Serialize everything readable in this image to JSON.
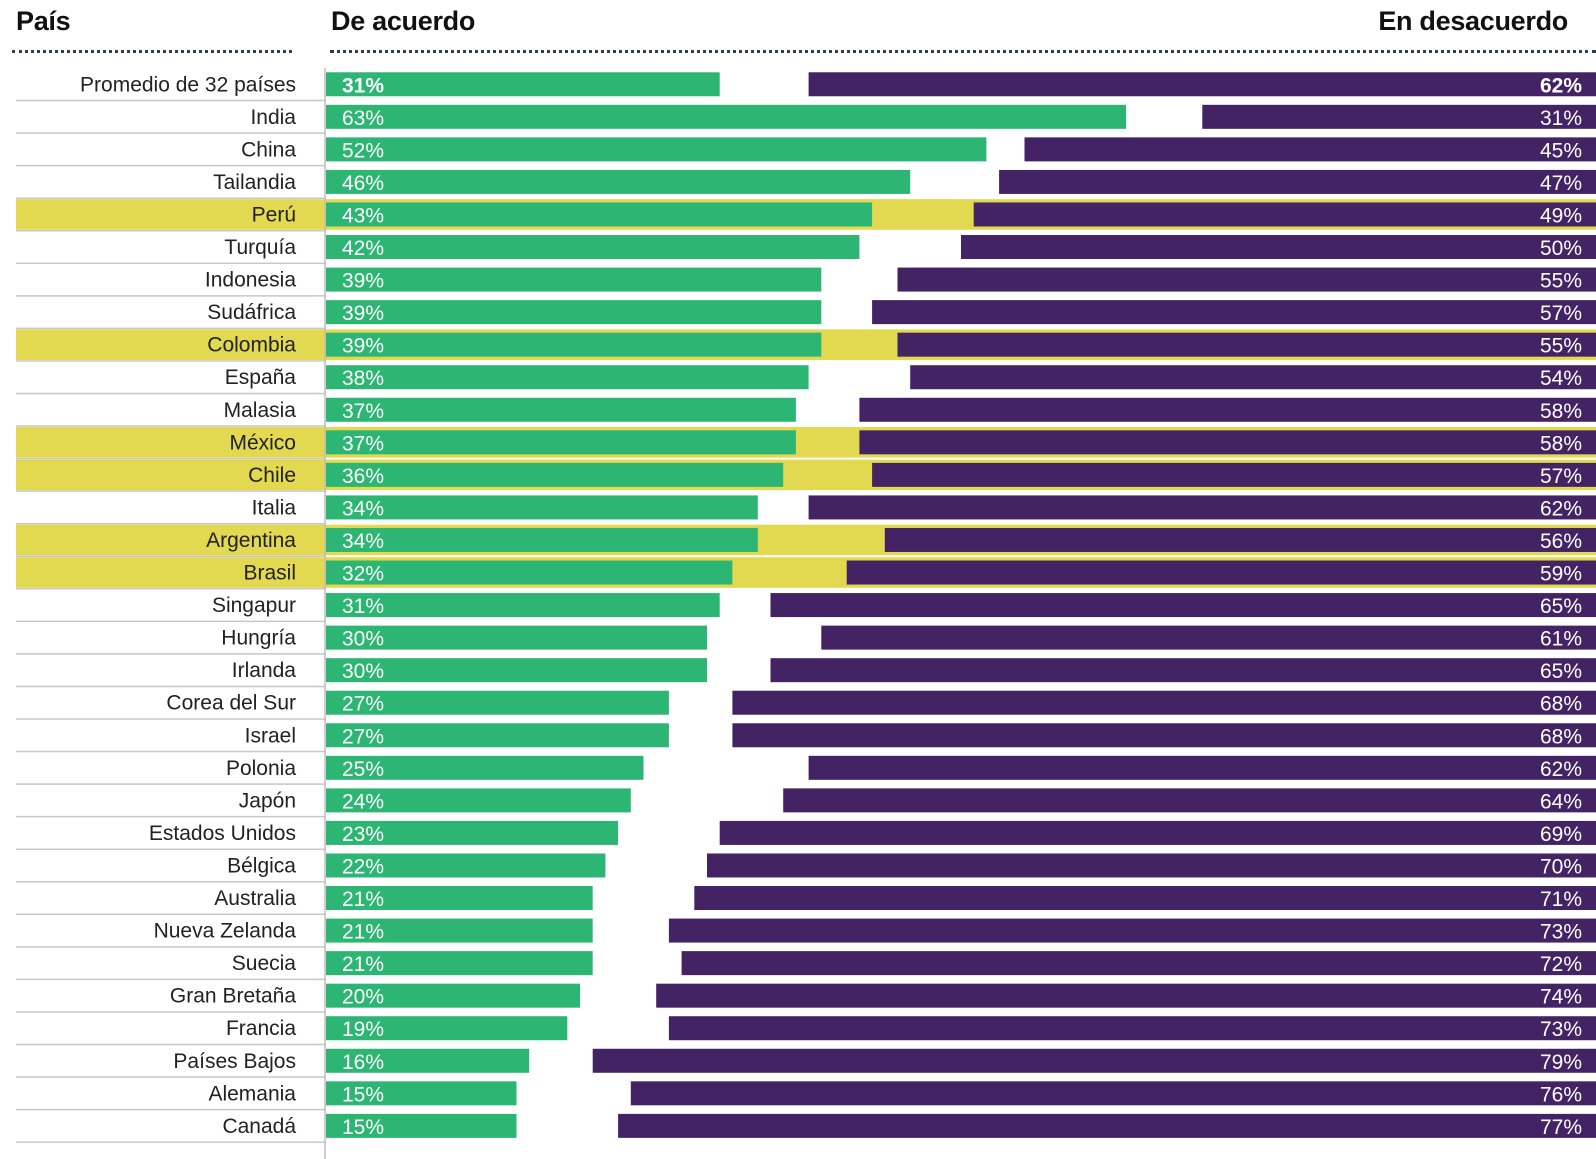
{
  "headers": {
    "country": "País",
    "agree": "De acuerdo",
    "disagree": "En desacuerdo"
  },
  "colors": {
    "agree": "#2db673",
    "disagree": "#432363",
    "highlight": "#e2d950",
    "row_line": "#c8c8c8"
  },
  "chart_data": {
    "type": "bar",
    "stacked": "diverging",
    "categories": [
      "Promedio de 32 países",
      "India",
      "China",
      "Tailandia",
      "Perú",
      "Turquía",
      "Indonesia",
      "Sudáfrica",
      "Colombia",
      "España",
      "Malasia",
      "México",
      "Chile",
      "Italia",
      "Argentina",
      "Brasil",
      "Singapur",
      "Hungría",
      "Irlanda",
      "Corea del Sur",
      "Israel",
      "Polonia",
      "Japón",
      "Estados Unidos",
      "Bélgica",
      "Australia",
      "Nueva Zelanda",
      "Suecia",
      "Gran Bretaña",
      "Francia",
      "Países Bajos",
      "Alemania",
      "Canadá"
    ],
    "series": [
      {
        "name": "De acuerdo",
        "values": [
          31,
          63,
          52,
          46,
          43,
          42,
          39,
          39,
          39,
          38,
          37,
          37,
          36,
          34,
          34,
          32,
          31,
          30,
          30,
          27,
          27,
          25,
          24,
          23,
          22,
          21,
          21,
          21,
          20,
          19,
          16,
          15,
          15
        ]
      },
      {
        "name": "En desacuerdo",
        "values": [
          62,
          31,
          45,
          47,
          49,
          50,
          55,
          57,
          55,
          54,
          58,
          58,
          57,
          62,
          56,
          59,
          65,
          61,
          65,
          68,
          68,
          62,
          64,
          69,
          70,
          71,
          73,
          72,
          74,
          73,
          79,
          76,
          77
        ]
      }
    ],
    "value_labels_agree": [
      "31%",
      "63%",
      "52%",
      "46%",
      "43%",
      "42%",
      "39%",
      "39%",
      "39%",
      "38%",
      "37%",
      "37%",
      "36%",
      "34%",
      "34%",
      "32%",
      "31%",
      "30%",
      "30%",
      "27%",
      "27%",
      "25%",
      "24%",
      "23%",
      "22%",
      "21%",
      "21%",
      "21%",
      "20%",
      "19%",
      "16%",
      "15%",
      "15%"
    ],
    "value_labels_disagree": [
      "62%",
      "31%",
      "45%",
      "47%",
      "49%",
      "50%",
      "55%",
      "57%",
      "55%",
      "54%",
      "58%",
      "58%",
      "57%",
      "62%",
      "56%",
      "59%",
      "65%",
      "61%",
      "65%",
      "68%",
      "68%",
      "62%",
      "64%",
      "69%",
      "70%",
      "71%",
      "73%",
      "72%",
      "74%",
      "73%",
      "79%",
      "76%",
      "77%"
    ],
    "highlighted": [
      "Perú",
      "Colombia",
      "México",
      "Chile",
      "Argentina",
      "Brasil"
    ],
    "bold_rows": [
      "Promedio de 32 países"
    ],
    "xlim": [
      0,
      100
    ]
  }
}
